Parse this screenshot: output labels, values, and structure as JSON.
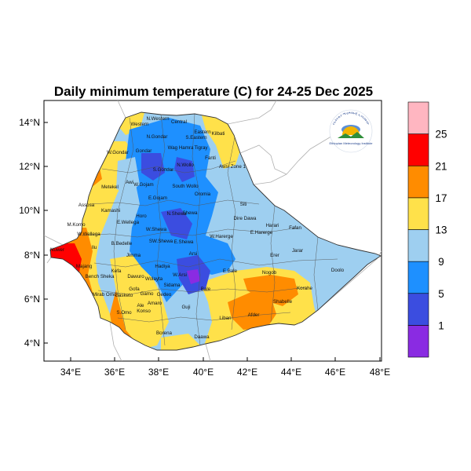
{
  "map": {
    "title": "Daily minimum temperature (C) for 24-25 Dec 2025",
    "lat_ticks": [
      "4°N",
      "6°N",
      "8°N",
      "10°N",
      "12°N",
      "14°N"
    ],
    "lon_ticks": [
      "34°E",
      "36°E",
      "38°E",
      "40°E",
      "42°E",
      "44°E",
      "46°E",
      "48°E"
    ],
    "colorbar": {
      "labels": [
        "1",
        "5",
        "9",
        "13",
        "17",
        "21",
        "25"
      ],
      "colors": [
        "#8a2be2",
        "#3b4de0",
        "#1e90ff",
        "#9ecff0",
        "#ffe14a",
        "#ff8c00",
        "#ff0000",
        "#ffb6c1"
      ]
    },
    "regions": [
      "N.Western",
      "Central",
      "Eastern",
      "Western",
      "Kilbati",
      "N.Gondar",
      "S.Eastern",
      "W.Gondar",
      "Gondar",
      "Wag Hamra",
      "Tigray",
      "Fanti",
      "S.Gondar",
      "N.Wollo",
      "Awsi Zone 1",
      "Metekel",
      "Awi",
      "W.Gojam",
      "South Wollo",
      "Oromia",
      "E.Gojam",
      "Assosa",
      "Kamashi",
      "Horo",
      "N.Shewa",
      "Shewa",
      "Siti",
      "Dire Dawa",
      "Harari",
      "Fafan",
      "M.Komo",
      "W.Wellega",
      "E.Wellega",
      "W.Shewa",
      "E.Shewa",
      "W.Harerge",
      "E.Harerge",
      "Nuwer",
      "Ilu",
      "B.Bedelle",
      "Jimma",
      "SW.Shewa",
      "Arsi",
      "Erer",
      "Jarar",
      "Majang",
      "Kefa",
      "Hadiya",
      "Bench Sheka",
      "Dawuro",
      "W.Arsi",
      "E.Bale",
      "Doolo",
      "Nogob",
      "Mirab Omo",
      "Wolayta",
      "Sidama",
      "Korahe",
      "Gofa",
      "Bale",
      "Basketo",
      "Gamo",
      "Gedeo",
      "S.Omo",
      "Amaro",
      "Guji",
      "Shabelle",
      "Konso",
      "Ale",
      "Liban",
      "Afder",
      "Borena",
      "Daawa"
    ],
    "logo": {
      "arc_text": "የኢትዮጵያ ሜቲዎሮሎጂ ኢንስቲትዩት",
      "caption": "Ethiopian Meteorology Institute"
    }
  }
}
